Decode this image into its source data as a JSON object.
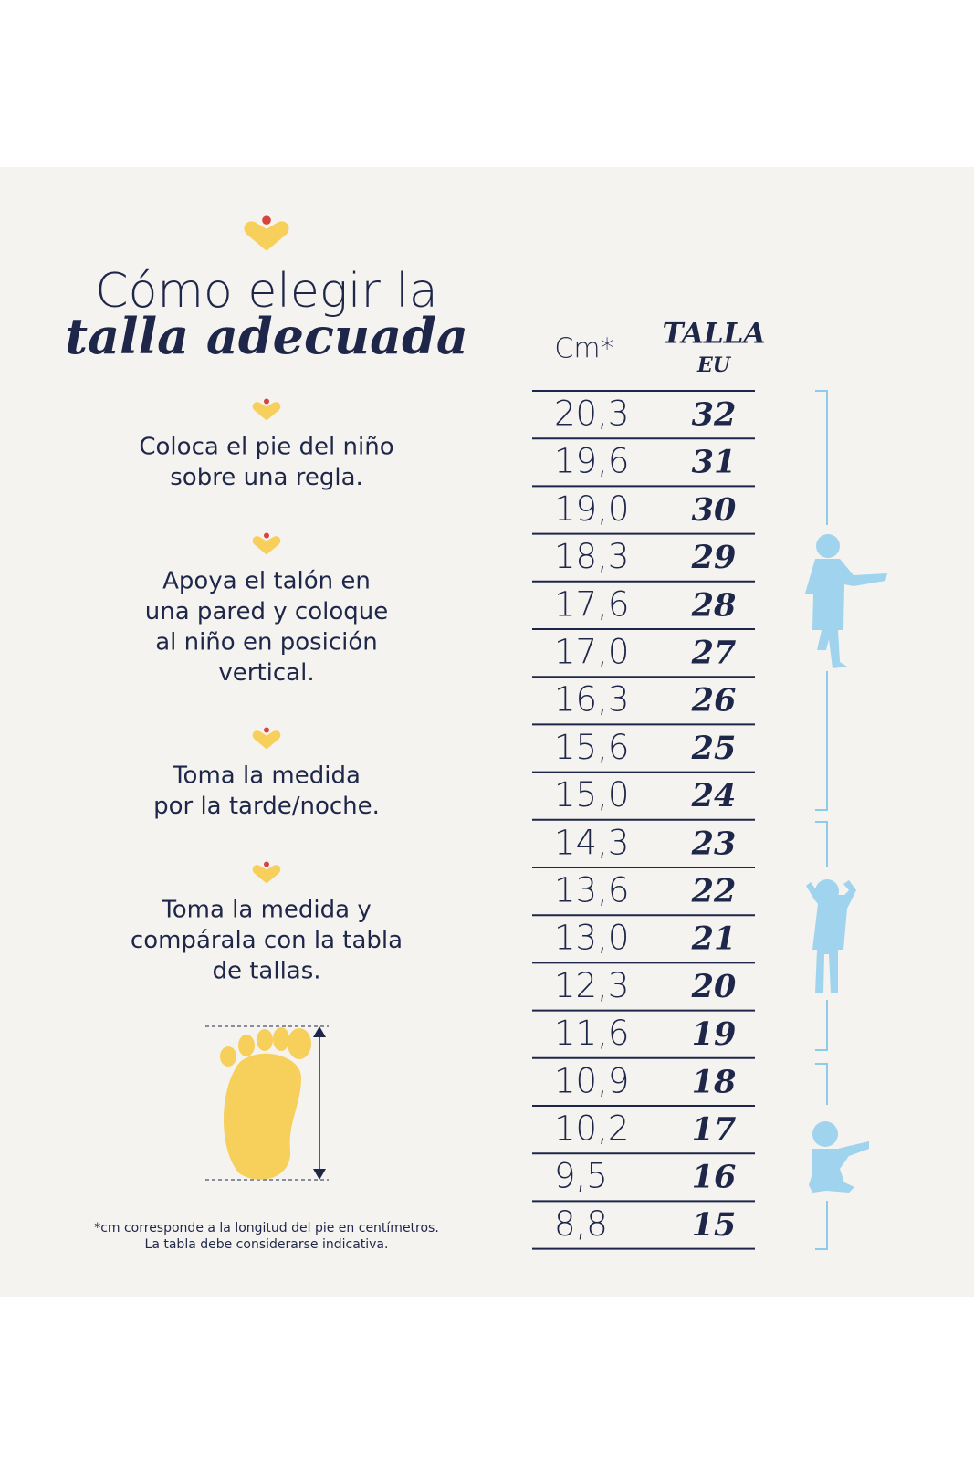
{
  "header": {
    "title_line1": "Cómo elegir la",
    "title_line2": "talla adecuada"
  },
  "steps": [
    {
      "lines": [
        "Coloca el pie del niño",
        "sobre una regla."
      ]
    },
    {
      "lines": [
        "Apoya el talón en",
        "una pared y coloque",
        "al niño en posición",
        "vertical."
      ]
    },
    {
      "lines": [
        "Toma la medida",
        "por la tarde/noche."
      ]
    },
    {
      "lines": [
        "Toma la medida y",
        "compárala con la tabla",
        "de tallas."
      ]
    }
  ],
  "footnote": [
    "*cm corresponde a la longitud del pie en centímetros.",
    "La tabla debe considerarse indicativa."
  ],
  "table": {
    "header": {
      "cm": "Cm*",
      "size": "TALLA",
      "size_sub": "EU"
    },
    "rows": [
      [
        "20,3",
        "32"
      ],
      [
        "19,6",
        "31"
      ],
      [
        "19,0",
        "30"
      ],
      [
        "18,3",
        "29"
      ],
      [
        "17,6",
        "28"
      ],
      [
        "17,0",
        "27"
      ],
      [
        "16,3",
        "26"
      ],
      [
        "15,6",
        "25"
      ],
      [
        "15,0",
        "24"
      ],
      [
        "14,3",
        "23"
      ],
      [
        "13,6",
        "22"
      ],
      [
        "13,0",
        "21"
      ],
      [
        "12,3",
        "20"
      ],
      [
        "11,6",
        "19"
      ],
      [
        "10,9",
        "18"
      ],
      [
        "10,2",
        "17"
      ],
      [
        "9,5",
        "16"
      ],
      [
        "8,8",
        "15"
      ]
    ]
  }
}
